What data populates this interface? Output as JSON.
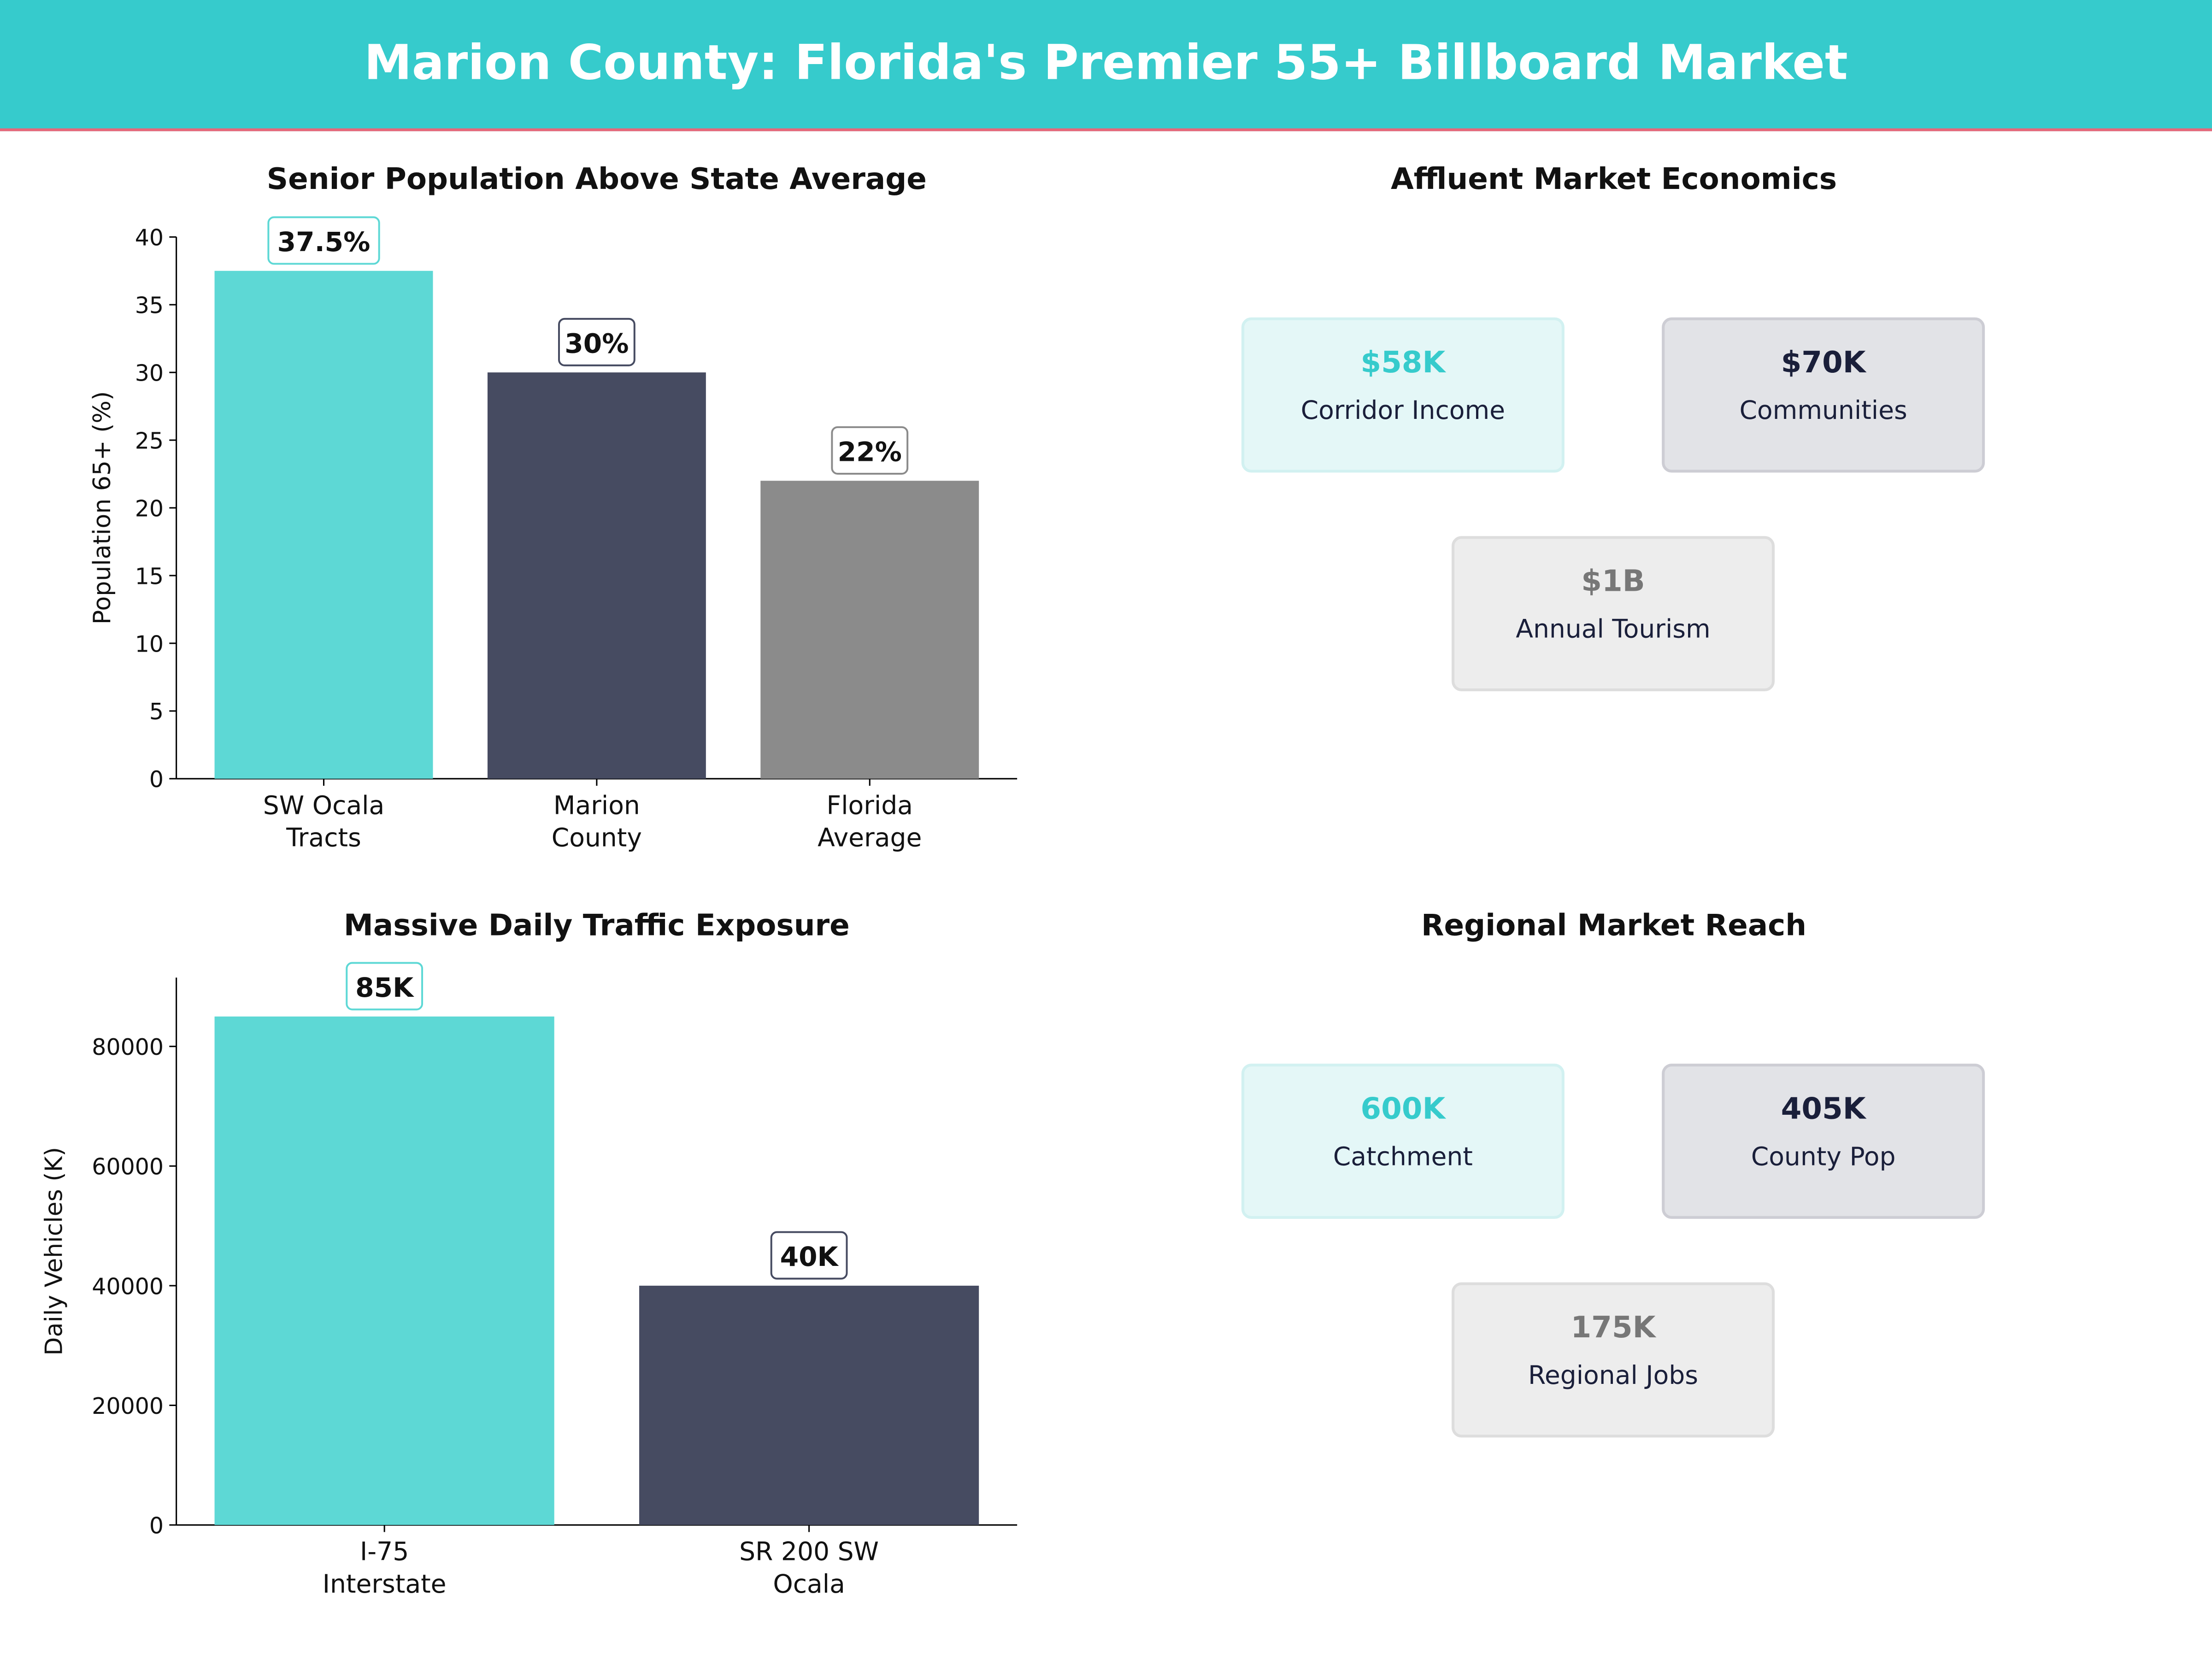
{
  "header": {
    "title": "Marion County: Florida's Premier 55+ Billboard Market"
  },
  "colors": {
    "header": "#36CBCC",
    "accent_line": "#E8677A",
    "teal": "#5DD8D5",
    "navy": "#464B61",
    "gray": "#8B8B8B"
  },
  "chart_data": [
    {
      "type": "bar",
      "title": "Senior Population Above State Average",
      "xlabel": "",
      "ylabel": "Population 65+ (%)",
      "categories": [
        "SW Ocala\nTracts",
        "Marion\nCounty",
        "Florida\nAverage"
      ],
      "values": [
        37.5,
        30,
        22
      ],
      "data_labels": [
        "37.5%",
        "30%",
        "22%"
      ],
      "colors": [
        "#5DD8D5",
        "#464B61",
        "#8B8B8B"
      ],
      "ylim": [
        0,
        40
      ],
      "yticks": [
        0,
        5,
        10,
        15,
        20,
        25,
        30,
        35,
        40
      ],
      "grid": false
    },
    {
      "type": "bar",
      "title": "Massive Daily Traffic Exposure",
      "xlabel": "",
      "ylabel": "Daily Vehicles (K)",
      "categories": [
        "I-75\nInterstate",
        "SR 200 SW\nOcala"
      ],
      "values": [
        85000,
        40000
      ],
      "data_labels": [
        "85K",
        "40K"
      ],
      "colors": [
        "#5DD8D5",
        "#464B61"
      ],
      "ylim": [
        0,
        91500
      ],
      "yticks": [
        0,
        20000,
        40000,
        60000,
        80000
      ],
      "grid": false
    }
  ],
  "economics": {
    "title": "Affluent Market Economics",
    "cards": [
      {
        "value": "$58K",
        "label": "Corridor Income"
      },
      {
        "value": "$70K",
        "label": "Communities"
      },
      {
        "value": "$1B",
        "label": "Annual Tourism"
      }
    ]
  },
  "reach": {
    "title": "Regional Market Reach",
    "cards": [
      {
        "value": "600K",
        "label": "Catchment"
      },
      {
        "value": "405K",
        "label": "County Pop"
      },
      {
        "value": "175K",
        "label": "Regional Jobs"
      }
    ]
  }
}
